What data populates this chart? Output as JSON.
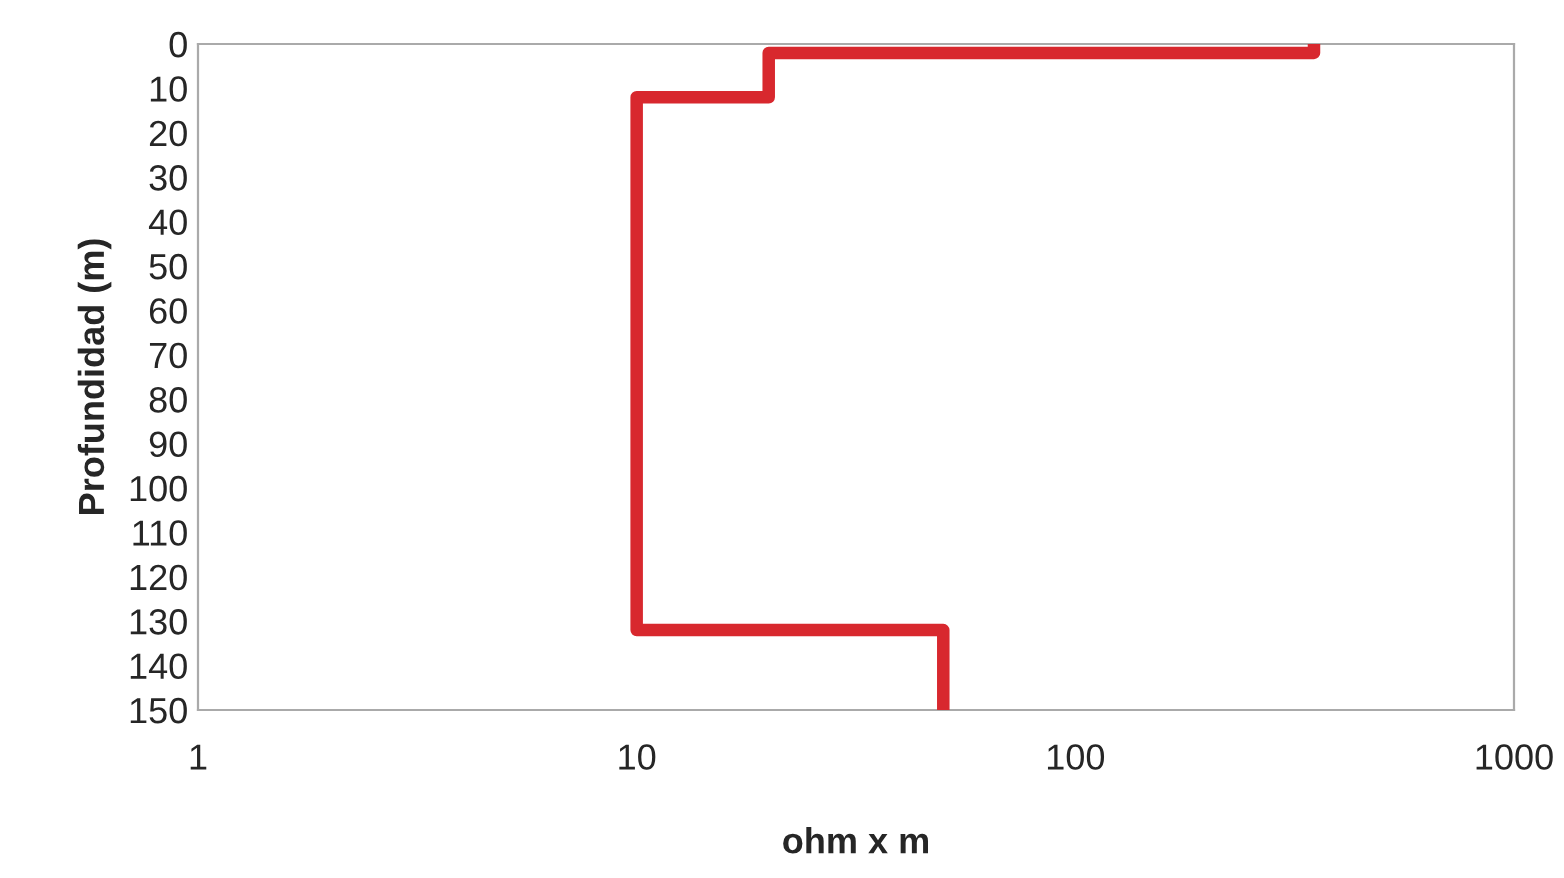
{
  "chart_data": {
    "type": "line",
    "xlabel": "ohm x m",
    "ylabel": "Profundidad (m)",
    "log": "x",
    "xlim": [
      1,
      1000
    ],
    "xticks": [
      1,
      10,
      100,
      1000
    ],
    "ylim": [
      150,
      0
    ],
    "yticks": [
      0,
      10,
      20,
      30,
      40,
      50,
      60,
      70,
      80,
      90,
      100,
      110,
      120,
      130,
      140,
      150
    ],
    "grid": false,
    "marker": "none",
    "line_style": "solid",
    "series": [
      {
        "color": "#d8282e",
        "x": [
          350,
          350,
          20,
          20,
          10,
          10,
          50,
          50
        ],
        "values": [
          0,
          2,
          2,
          12,
          12,
          132,
          132,
          150
        ]
      }
    ]
  }
}
